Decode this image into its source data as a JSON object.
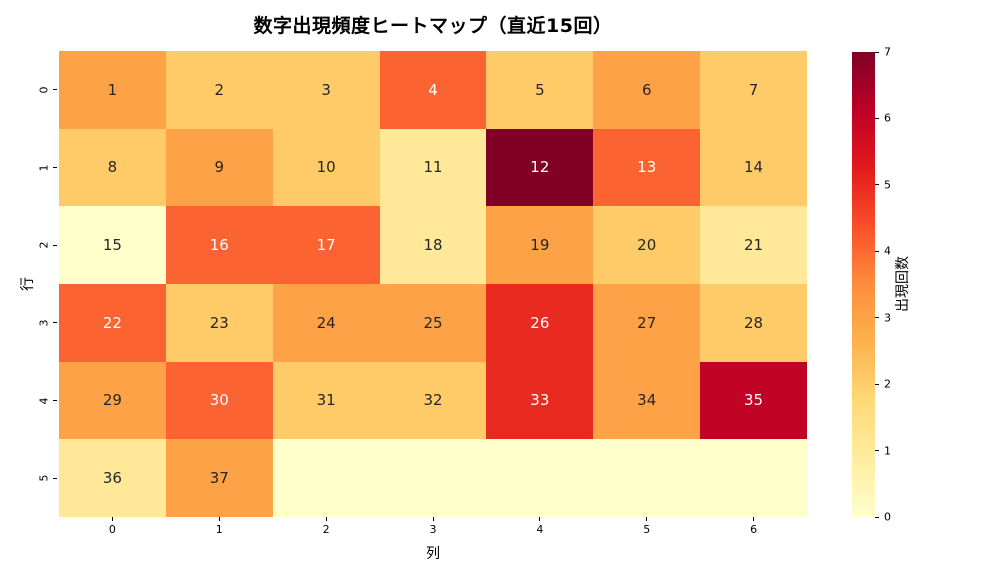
{
  "chart_data": {
    "type": "heatmap",
    "title": "数字出現頻度ヒートマップ（直近15回）",
    "xlabel": "列",
    "ylabel": "行",
    "colorbar_label": "出現回数",
    "colormap_name": "YlOrRd",
    "vmin": 0,
    "vmax": 7,
    "x_ticklabels": [
      "0",
      "1",
      "2",
      "3",
      "4",
      "5",
      "6"
    ],
    "y_ticklabels": [
      "0",
      "1",
      "2",
      "3",
      "4",
      "5"
    ],
    "colorbar_ticks": [
      0,
      1,
      2,
      3,
      4,
      5,
      6,
      7
    ],
    "rows": [
      {
        "labels": [
          "1",
          "2",
          "3",
          "4",
          "5",
          "6",
          "7"
        ],
        "values": [
          3,
          2,
          2,
          4,
          2,
          3,
          2
        ]
      },
      {
        "labels": [
          "8",
          "9",
          "10",
          "11",
          "12",
          "13",
          "14"
        ],
        "values": [
          2,
          3,
          2,
          1,
          7,
          4,
          2
        ]
      },
      {
        "labels": [
          "15",
          "16",
          "17",
          "18",
          "19",
          "20",
          "21"
        ],
        "values": [
          0,
          4,
          4,
          1,
          3,
          2,
          1
        ]
      },
      {
        "labels": [
          "22",
          "23",
          "24",
          "25",
          "26",
          "27",
          "28"
        ],
        "values": [
          4,
          2,
          3,
          3,
          5,
          3,
          2
        ]
      },
      {
        "labels": [
          "29",
          "30",
          "31",
          "32",
          "33",
          "34",
          "35"
        ],
        "values": [
          3,
          4,
          2,
          2,
          5,
          3,
          6
        ]
      },
      {
        "labels": [
          "36",
          "37",
          "",
          "",
          "",
          "",
          ""
        ],
        "values": [
          1,
          3,
          0,
          0,
          0,
          0,
          0
        ]
      }
    ],
    "value_colors": [
      "#ffffcc",
      "#ffe999",
      "#fecb68",
      "#fda247",
      "#fb6432",
      "#e92a21",
      "#c10425",
      "#800026"
    ],
    "colorbar_gradient_stops": [
      "#ffffcc",
      "#ffeda0",
      "#fed976",
      "#feb24c",
      "#fd8d3c",
      "#fc4e2a",
      "#e31a1c",
      "#bd0026",
      "#800026"
    ],
    "annotation_dark_color": "#262626",
    "annotation_light_color": "#ffffff",
    "light_text_min_value": 4,
    "background_color": "#ffffff"
  }
}
